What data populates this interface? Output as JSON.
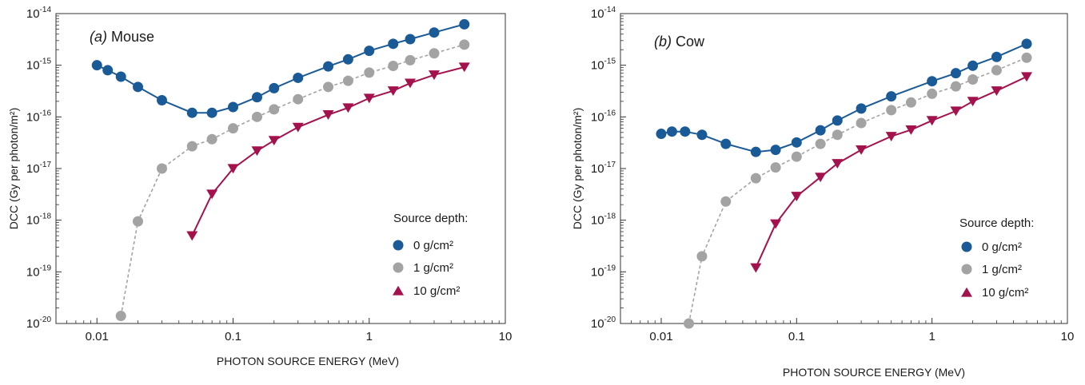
{
  "chart_data": [
    {
      "type": "line",
      "panel_prefix": "(a)",
      "title": "Mouse",
      "xlabel": "PHOTON SOURCE ENERGY (MeV)",
      "ylabel": "DCC (Gy per photon/m²)",
      "xscale": "log",
      "yscale": "log",
      "xlim": [
        0.005,
        10
      ],
      "ylim": [
        1e-20,
        1e-14
      ],
      "xticks": [
        "0.01",
        "0.1",
        "1",
        "10"
      ],
      "ytick_exponents": [
        "-14",
        "-15",
        "-16",
        "-17",
        "-18",
        "-19",
        "-20"
      ],
      "legend_title": "Source depth:",
      "legend_position": "lower-right",
      "series": [
        {
          "name": "0 g/cm²",
          "color": "#1a5a96",
          "marker": "circle",
          "line": "solid",
          "points": [
            [
              0.01,
              1e-15
            ],
            [
              0.012,
              8e-16
            ],
            [
              0.015,
              6e-16
            ],
            [
              0.02,
              3.8e-16
            ],
            [
              0.03,
              2.1e-16
            ],
            [
              0.05,
              1.2e-16
            ],
            [
              0.07,
              1.2e-16
            ],
            [
              0.1,
              1.55e-16
            ],
            [
              0.15,
              2.4e-16
            ],
            [
              0.2,
              3.6e-16
            ],
            [
              0.3,
              5.7e-16
            ],
            [
              0.5,
              9.5e-16
            ],
            [
              0.7,
              1.3e-15
            ],
            [
              1,
              1.9e-15
            ],
            [
              1.5,
              2.6e-15
            ],
            [
              2,
              3.2e-15
            ],
            [
              3,
              4.3e-15
            ],
            [
              5,
              6.2e-15
            ]
          ]
        },
        {
          "name": "1 g/cm²",
          "color": "#a3a3a3",
          "marker": "circle",
          "line": "dashed",
          "points": [
            [
              0.015,
              1.4e-20
            ],
            [
              0.02,
              9.5e-19
            ],
            [
              0.03,
              1e-17
            ],
            [
              0.05,
              2.7e-17
            ],
            [
              0.07,
              3.7e-17
            ],
            [
              0.1,
              6e-17
            ],
            [
              0.15,
              1e-16
            ],
            [
              0.2,
              1.4e-16
            ],
            [
              0.3,
              2.2e-16
            ],
            [
              0.5,
              3.8e-16
            ],
            [
              0.7,
              5e-16
            ],
            [
              1,
              7.2e-16
            ],
            [
              1.5,
              9.7e-16
            ],
            [
              2,
              1.25e-15
            ],
            [
              3,
              1.7e-15
            ],
            [
              5,
              2.5e-15
            ]
          ]
        },
        {
          "name": "10 g/cm²",
          "color": "#a4124e",
          "marker": "triangle-down",
          "line": "solid",
          "points": [
            [
              0.05,
              5e-19
            ],
            [
              0.07,
              3.2e-18
            ],
            [
              0.1,
              1e-17
            ],
            [
              0.15,
              2.2e-17
            ],
            [
              0.2,
              3.5e-17
            ],
            [
              0.3,
              6.3e-17
            ],
            [
              0.5,
              1.1e-16
            ],
            [
              0.7,
              1.5e-16
            ],
            [
              1,
              2.3e-16
            ],
            [
              1.5,
              3.2e-16
            ],
            [
              2,
              4.5e-16
            ],
            [
              3,
              6.5e-16
            ],
            [
              5,
              9.2e-16
            ]
          ]
        }
      ]
    },
    {
      "type": "line",
      "panel_prefix": "(b)",
      "title": "Cow",
      "xlabel": "PHOTON SOURCE ENERGY (MeV)",
      "ylabel": "DCC (Gy per photon/m²)",
      "xscale": "log",
      "yscale": "log",
      "xlim": [
        0.005,
        10
      ],
      "ylim": [
        1e-20,
        1e-14
      ],
      "xticks": [
        "0.01",
        "0.1",
        "1",
        "10"
      ],
      "ytick_exponents": [
        "-14",
        "-15",
        "-16",
        "-17",
        "-18",
        "-19",
        "-20"
      ],
      "legend_title": "Source depth:",
      "legend_position": "lower-right",
      "series": [
        {
          "name": "0 g/cm²",
          "color": "#1a5a96",
          "marker": "circle",
          "line": "solid",
          "points": [
            [
              0.01,
              4.7e-17
            ],
            [
              0.012,
              5.2e-17
            ],
            [
              0.015,
              5.2e-17
            ],
            [
              0.02,
              4.5e-17
            ],
            [
              0.03,
              3e-17
            ],
            [
              0.05,
              2.1e-17
            ],
            [
              0.07,
              2.3e-17
            ],
            [
              0.1,
              3.2e-17
            ],
            [
              0.15,
              5.5e-17
            ],
            [
              0.2,
              8.5e-17
            ],
            [
              0.3,
              1.45e-16
            ],
            [
              0.5,
              2.5e-16
            ],
            [
              1,
              4.9e-16
            ],
            [
              1.5,
              7e-16
            ],
            [
              2,
              9.8e-16
            ],
            [
              3,
              1.45e-15
            ],
            [
              5,
              2.6e-15
            ]
          ]
        },
        {
          "name": "1 g/cm²",
          "color": "#a3a3a3",
          "marker": "circle",
          "line": "dashed",
          "points": [
            [
              0.016,
              1e-20
            ],
            [
              0.02,
              2e-19
            ],
            [
              0.03,
              2.3e-18
            ],
            [
              0.05,
              6.5e-18
            ],
            [
              0.07,
              1.05e-17
            ],
            [
              0.1,
              1.7e-17
            ],
            [
              0.15,
              3e-17
            ],
            [
              0.2,
              4.5e-17
            ],
            [
              0.3,
              7.6e-17
            ],
            [
              0.5,
              1.35e-16
            ],
            [
              0.7,
              1.9e-16
            ],
            [
              1,
              2.8e-16
            ],
            [
              1.5,
              3.9e-16
            ],
            [
              2,
              5.3e-16
            ],
            [
              3,
              8e-16
            ],
            [
              5,
              1.4e-15
            ]
          ]
        },
        {
          "name": "10 g/cm²",
          "color": "#a4124e",
          "marker": "triangle-down",
          "line": "solid",
          "points": [
            [
              0.05,
              1.2e-19
            ],
            [
              0.07,
              8.5e-19
            ],
            [
              0.1,
              2.9e-18
            ],
            [
              0.15,
              6.8e-18
            ],
            [
              0.2,
              1.25e-17
            ],
            [
              0.3,
              2.3e-17
            ],
            [
              0.5,
              4.2e-17
            ],
            [
              0.7,
              5.6e-17
            ],
            [
              1,
              8.5e-17
            ],
            [
              1.5,
              1.3e-16
            ],
            [
              2,
              2e-16
            ],
            [
              3,
              3.2e-16
            ],
            [
              5,
              6e-16
            ]
          ]
        }
      ]
    }
  ]
}
